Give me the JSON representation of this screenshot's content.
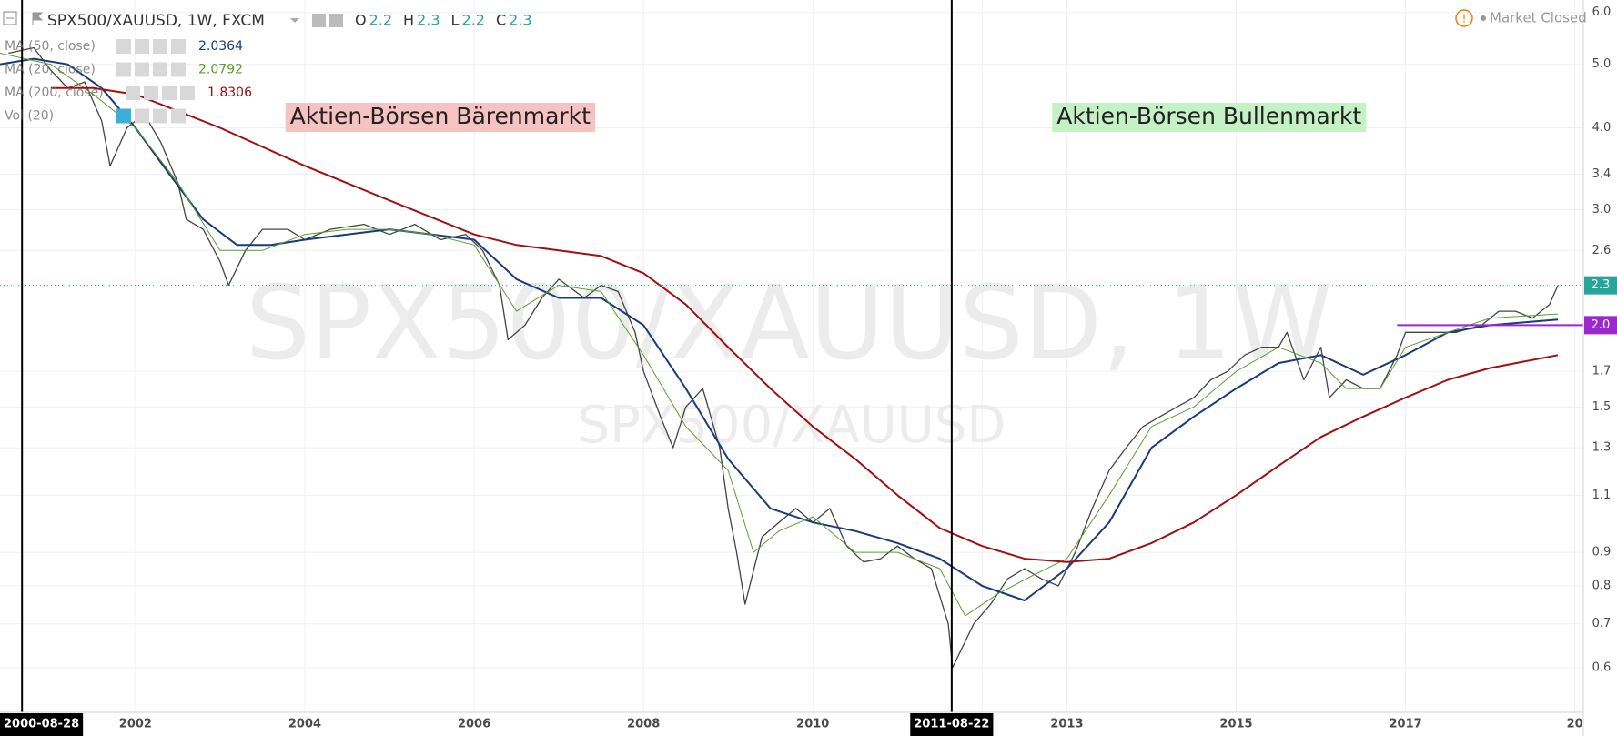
{
  "chart_data": {
    "type": "line",
    "title": "SPX500/XAUUSD, 1W, FXCM",
    "ohlc": [
      {
        "label": "O",
        "value": 2.2
      },
      {
        "label": "H",
        "value": 2.3
      },
      {
        "label": "L",
        "value": 2.2
      },
      {
        "label": "C",
        "value": 2.3
      }
    ],
    "status": "Market Closed",
    "watermark": [
      "SPX500/XAUUSD, 1W",
      "SPX500/XAUUSD"
    ],
    "indicators": [
      {
        "name": "MA (50, close)",
        "value": 2.0364,
        "color": "#1a3a7a"
      },
      {
        "name": "MA (20, close)",
        "value": 2.0792,
        "color": "#5aa02c"
      },
      {
        "name": "MA (200, close)",
        "value": 1.8306,
        "color": "#a01010"
      },
      {
        "name": "Vol (20)"
      }
    ],
    "annotations": [
      {
        "text": "Aktien-Börsen Bärenmarkt",
        "color": "#f7c2c2",
        "x": 2005.6,
        "y": 4.15
      },
      {
        "text": "Aktien-Börsen Bullenmarkt",
        "color": "#c5f2c5",
        "x": 2014.68,
        "y": 4.15
      }
    ],
    "markers": [
      {
        "x": 2000.66,
        "label": "2000-08-28"
      },
      {
        "x": 2011.64,
        "label": "2011-08-22"
      }
    ],
    "hline": {
      "value": 2,
      "label": "2.0",
      "from": 2016.9,
      "color": "#9c27d0"
    },
    "last_price": {
      "value": 2.3,
      "color": "#26a69a"
    },
    "log_scale": true,
    "grid": true,
    "xlim": [
      2000.4,
      2019.1
    ],
    "xticks": [
      2002,
      2004,
      2006,
      2008,
      2010,
      {
        "value": 2012,
        "label": "2"
      },
      2013,
      2015,
      2017,
      {
        "value": 2019,
        "label": "20"
      }
    ],
    "ylim": [
      0.5129,
      6.269
    ],
    "yticks": [
      {
        "value": 6,
        "label": "6.0"
      },
      {
        "value": 5,
        "label": "5.0"
      },
      {
        "value": 4,
        "label": "4.0"
      },
      3.4,
      {
        "value": 3,
        "label": "3.0"
      },
      2.6,
      1.7,
      1.5,
      1.3,
      1.1,
      0.9,
      0.8,
      0.7,
      0.6
    ],
    "series": [
      {
        "name": "SPX500/XAUUSD",
        "color": "#444444",
        "x": [
          2000.5,
          2000.8,
          2001.0,
          2001.2,
          2001.4,
          2001.6,
          2001.7,
          2001.9,
          2002.1,
          2002.3,
          2002.5,
          2002.6,
          2002.8,
          2003.0,
          2003.1,
          2003.3,
          2003.5,
          2003.8,
          2004.0,
          2004.3,
          2004.7,
          2005.0,
          2005.3,
          2005.6,
          2005.9,
          2006.1,
          2006.3,
          2006.4,
          2006.6,
          2006.8,
          2007.0,
          2007.3,
          2007.5,
          2007.7,
          2007.9,
          2008.0,
          2008.2,
          2008.35,
          2008.5,
          2008.7,
          2008.9,
          2009.0,
          2009.1,
          2009.2,
          2009.4,
          2009.6,
          2009.8,
          2010.0,
          2010.2,
          2010.4,
          2010.6,
          2010.8,
          2011.0,
          2011.2,
          2011.4,
          2011.6,
          2011.65,
          2011.9,
          2012.1,
          2012.3,
          2012.5,
          2012.7,
          2012.9,
          2013.1,
          2013.3,
          2013.5,
          2013.7,
          2013.9,
          2014.1,
          2014.3,
          2014.5,
          2014.7,
          2014.9,
          2015.1,
          2015.3,
          2015.5,
          2015.6,
          2015.8,
          2016.0,
          2016.1,
          2016.3,
          2016.5,
          2016.7,
          2016.9,
          2017.0,
          2017.3,
          2017.6,
          2017.9,
          2018.1,
          2018.3,
          2018.5,
          2018.7,
          2018.8
        ],
        "values": [
          5.2,
          5.3,
          4.9,
          4.6,
          4.7,
          4.1,
          3.5,
          4.0,
          4.2,
          3.8,
          3.3,
          2.9,
          2.8,
          2.5,
          2.3,
          2.6,
          2.8,
          2.8,
          2.7,
          2.8,
          2.85,
          2.75,
          2.85,
          2.7,
          2.75,
          2.6,
          2.3,
          1.9,
          2.0,
          2.2,
          2.35,
          2.2,
          2.3,
          2.25,
          1.95,
          1.7,
          1.45,
          1.3,
          1.5,
          1.6,
          1.3,
          1.05,
          0.9,
          0.75,
          0.95,
          1.0,
          1.05,
          1.0,
          1.05,
          0.92,
          0.87,
          0.88,
          0.92,
          0.88,
          0.85,
          0.7,
          0.6,
          0.7,
          0.75,
          0.82,
          0.85,
          0.82,
          0.8,
          0.9,
          1.05,
          1.2,
          1.3,
          1.4,
          1.45,
          1.5,
          1.55,
          1.65,
          1.7,
          1.8,
          1.85,
          1.85,
          1.95,
          1.65,
          1.85,
          1.55,
          1.65,
          1.6,
          1.6,
          1.8,
          1.95,
          1.95,
          1.95,
          2.0,
          2.1,
          2.1,
          2.05,
          2.15,
          2.3
        ]
      },
      {
        "name": "MA (50, close)",
        "color": "#1a3a7a",
        "x": [
          2000.4,
          2000.8,
          2001.2,
          2001.6,
          2002.0,
          2002.4,
          2002.8,
          2003.2,
          2003.6,
          2004.0,
          2004.5,
          2005.0,
          2005.5,
          2006.0,
          2006.5,
          2007.0,
          2007.5,
          2008.0,
          2008.5,
          2009.0,
          2009.5,
          2010.0,
          2010.5,
          2011.0,
          2011.5,
          2012.0,
          2012.5,
          2013.0,
          2013.5,
          2014.0,
          2014.5,
          2015.0,
          2015.5,
          2016.0,
          2016.5,
          2017.0,
          2017.5,
          2018.0,
          2018.8
        ],
        "values": [
          5.0,
          5.1,
          5.0,
          4.6,
          4.0,
          3.4,
          2.9,
          2.65,
          2.65,
          2.7,
          2.75,
          2.8,
          2.75,
          2.7,
          2.35,
          2.2,
          2.2,
          2.0,
          1.6,
          1.25,
          1.05,
          1.0,
          0.97,
          0.93,
          0.88,
          0.8,
          0.76,
          0.85,
          1.0,
          1.3,
          1.45,
          1.6,
          1.75,
          1.8,
          1.68,
          1.8,
          1.95,
          2.0,
          2.04
        ]
      },
      {
        "name": "MA (20, close)",
        "color": "#5aa02c",
        "x": [
          2000.4,
          2001.0,
          2001.5,
          2002.0,
          2002.5,
          2003.0,
          2003.5,
          2004.0,
          2004.5,
          2005.0,
          2005.5,
          2006.0,
          2006.5,
          2007.0,
          2007.5,
          2008.0,
          2008.5,
          2009.0,
          2009.3,
          2009.6,
          2010.0,
          2010.5,
          2011.0,
          2011.5,
          2011.8,
          2012.2,
          2012.6,
          2013.0,
          2013.5,
          2014.0,
          2014.5,
          2015.0,
          2015.5,
          2016.0,
          2016.3,
          2016.7,
          2017.0,
          2017.5,
          2018.0,
          2018.8
        ],
        "values": [
          5.2,
          5.0,
          4.5,
          4.0,
          3.3,
          2.6,
          2.6,
          2.75,
          2.8,
          2.8,
          2.75,
          2.65,
          2.1,
          2.3,
          2.25,
          1.8,
          1.4,
          1.2,
          0.9,
          0.97,
          1.02,
          0.9,
          0.9,
          0.85,
          0.72,
          0.78,
          0.83,
          0.88,
          1.1,
          1.4,
          1.5,
          1.7,
          1.85,
          1.75,
          1.6,
          1.6,
          1.85,
          1.95,
          2.05,
          2.08
        ]
      },
      {
        "name": "MA (200, close)",
        "color": "#a01010",
        "x": [
          2001.0,
          2001.5,
          2002.0,
          2003.0,
          2004.0,
          2005.0,
          2006.0,
          2006.5,
          2007.0,
          2007.5,
          2008.0,
          2008.5,
          2009.0,
          2009.5,
          2010.0,
          2010.5,
          2011.0,
          2011.5,
          2012.0,
          2012.5,
          2013.0,
          2013.5,
          2014.0,
          2014.5,
          2015.0,
          2015.5,
          2016.0,
          2016.5,
          2017.0,
          2017.5,
          2018.0,
          2018.8
        ],
        "values": [
          4.6,
          4.6,
          4.5,
          4.0,
          3.5,
          3.1,
          2.75,
          2.65,
          2.6,
          2.55,
          2.4,
          2.15,
          1.85,
          1.6,
          1.4,
          1.25,
          1.1,
          0.98,
          0.92,
          0.88,
          0.87,
          0.88,
          0.93,
          1.0,
          1.1,
          1.22,
          1.35,
          1.45,
          1.55,
          1.65,
          1.72,
          1.8
        ]
      }
    ]
  }
}
